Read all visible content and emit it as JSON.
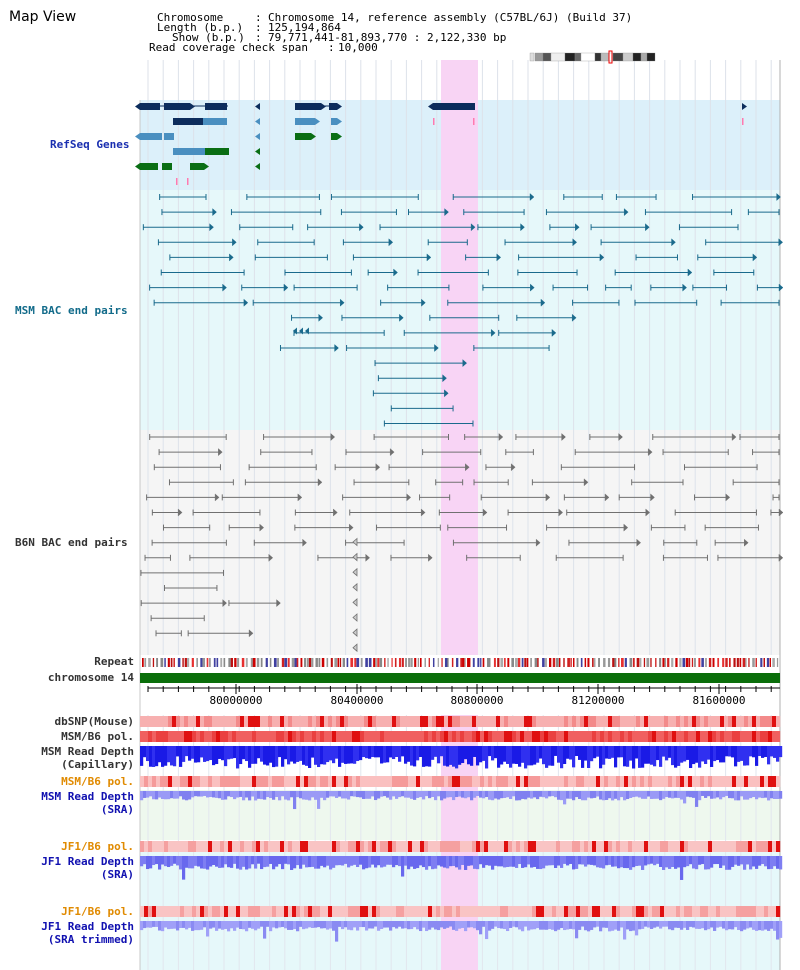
{
  "app": {
    "title": "Map View"
  },
  "info": {
    "chromosome_label": "Chromosome",
    "chromosome_value": "Chromosome 14, reference assembly (C57BL/6J) (Build 37)",
    "length_label": "Length (b.p.)",
    "length_value": "125,194,864",
    "show_label": "Show (b.p.)",
    "show_value": "79,771,441-81,893,770 : 2,122,330 bp",
    "coverage_label": "Read coverage check span",
    "coverage_value": "10,000"
  },
  "tracks": {
    "refseq": "RefSeq Genes",
    "msm_bac": "MSM BAC end pairs",
    "b6n_bac": "B6N BAC end pairs",
    "repeat": "Repeat",
    "chromosome": "chromosome 14",
    "dbsnp": "dbSNP(Mouse)",
    "msm_b6_pol_1": "MSM/B6 pol.",
    "msm_depth_cap_1": "MSM Read Depth",
    "msm_depth_cap_2": "(Capillary)",
    "msm_b6_pol_2": "MSM/B6 pol.",
    "msm_depth_sra_1": "MSM Read Depth",
    "msm_depth_sra_2": "(SRA)",
    "jf1_b6_pol_1": "JF1/B6 pol.",
    "jf1_depth_sra_1": "JF1 Read Depth",
    "jf1_depth_sra_2": "(SRA)",
    "jf1_b6_pol_2": "JF1/B6 pol.",
    "jf1_depth_trim_1": "JF1 Read Depth",
    "jf1_depth_trim_2": "(SRA trimmed)"
  },
  "axis": {
    "range_bp": [
      79771441,
      81893770
    ],
    "ticks": [
      "80000000",
      "80400000",
      "80800000",
      "81200000",
      "81600000"
    ]
  },
  "colors": {
    "refseq_bg": "#dcf0fa",
    "msm_bg": "#e6f8fa",
    "b6n_bg": "#f5f5f5",
    "highlight": "#f8d4f4",
    "refseq_dark": "#0c2c5c",
    "refseq_mid": "#4a8fc0",
    "refseq_green": "#0a6e14",
    "msm_feature": "#1a6a8c",
    "b6n_feature": "#707070",
    "chromosome_bar": "#0a6e0a"
  },
  "icons": {
    "ideogram": "chromosome-ideogram-icon"
  }
}
